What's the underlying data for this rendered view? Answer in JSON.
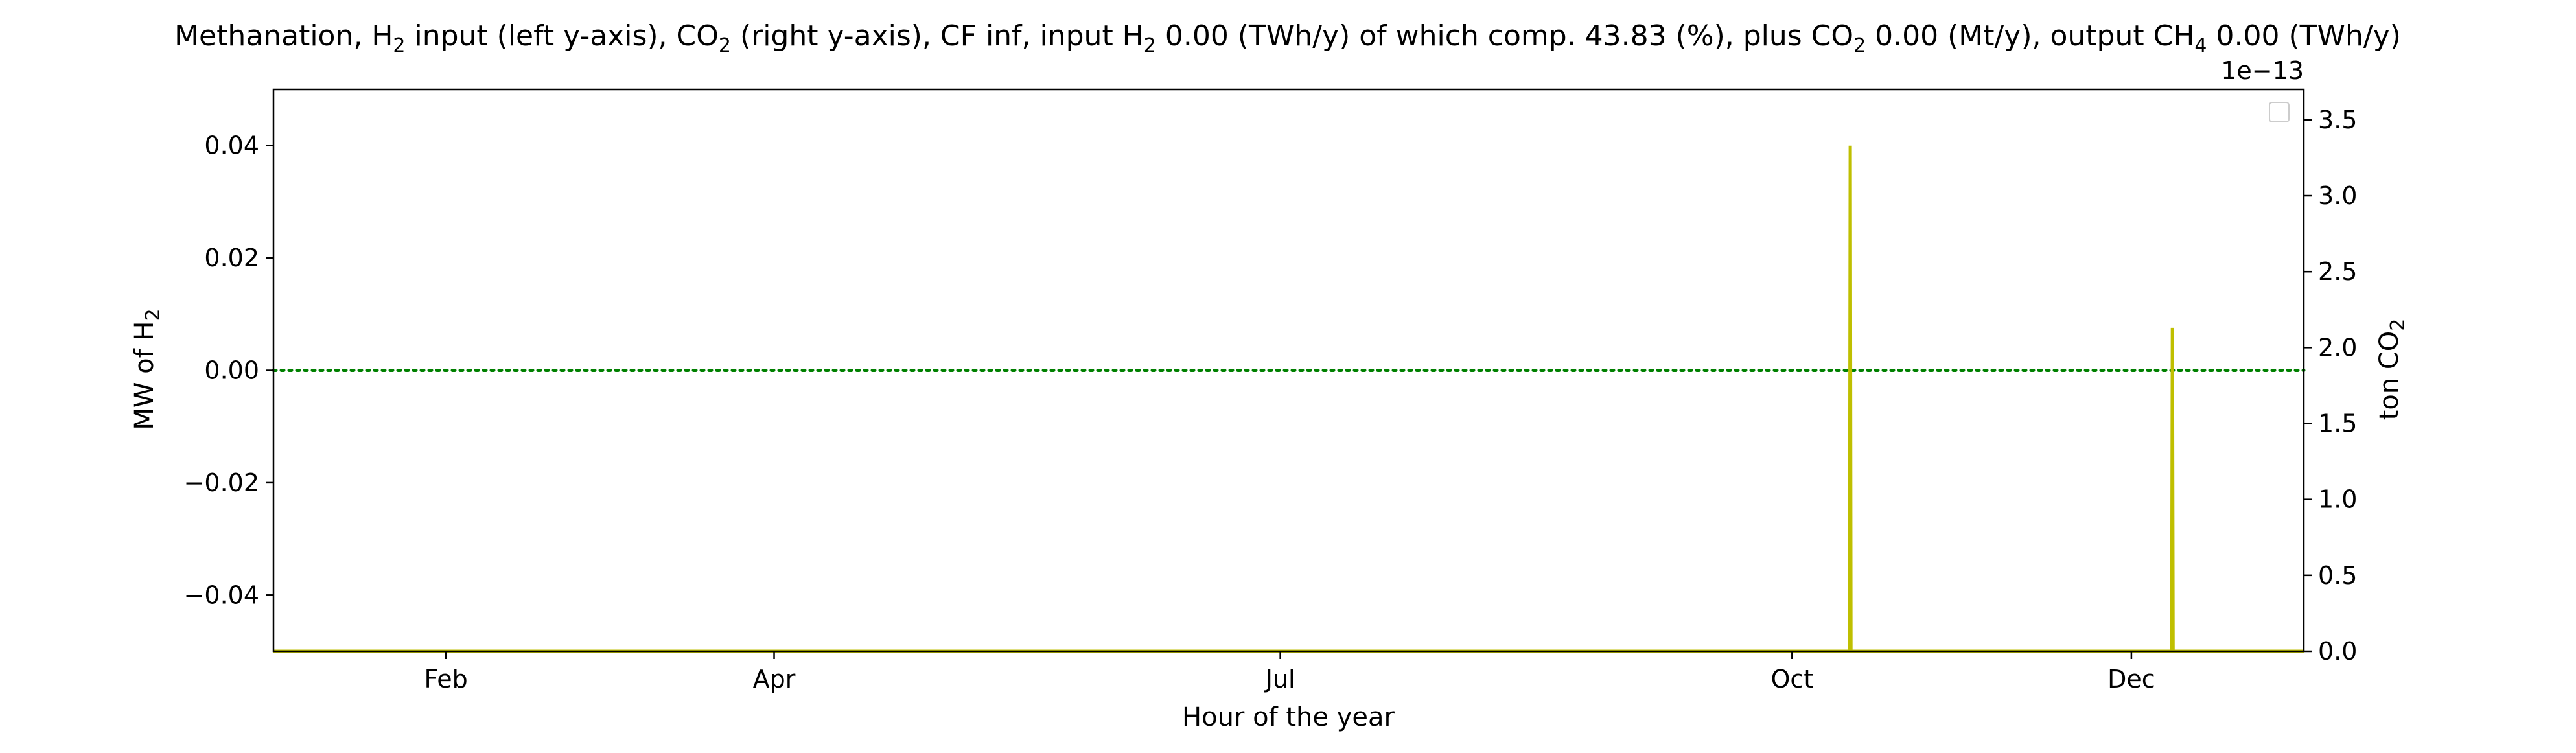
{
  "chart_data": {
    "type": "line",
    "title_parts": {
      "t1": "Methanation, H",
      "t1_sub": "2",
      "t2": " input (left y-axis), CO",
      "t2_sub": "2",
      "t3": " (right y-axis), CF inf, input H",
      "t3_sub": "2",
      "t4": " 0.00 (TWh/y) of which comp. 43.83 (%), plus CO",
      "t4_sub": "2",
      "t5": " 0.00 (Mt/y), output CH",
      "t5_sub": "4",
      "t6": " 0.00 (TWh/y)"
    },
    "xlabel": "Hour of the year",
    "ylabel_left": {
      "text": "MW of H",
      "sub": "2"
    },
    "ylabel_right": {
      "text": "ton CO",
      "sub": "2"
    },
    "right_axis_offset": "1e−13",
    "x_range": [
      0,
      8760
    ],
    "x_ticks": [
      {
        "label": "Feb",
        "value": 744
      },
      {
        "label": "Apr",
        "value": 2160
      },
      {
        "label": "Jul",
        "value": 4344
      },
      {
        "label": "Oct",
        "value": 6552
      },
      {
        "label": "Dec",
        "value": 8016
      }
    ],
    "ylim_left": [
      -0.05,
      0.05
    ],
    "y_ticks_left": [
      {
        "label": "0.04",
        "value": 0.04
      },
      {
        "label": "0.02",
        "value": 0.02
      },
      {
        "label": "0.00",
        "value": 0.0
      },
      {
        "label": "−0.02",
        "value": -0.02
      },
      {
        "label": "−0.04",
        "value": -0.04
      }
    ],
    "ylim_right": [
      0,
      3.7
    ],
    "y_ticks_right": [
      {
        "label": "3.5",
        "value": 3.5
      },
      {
        "label": "3.0",
        "value": 3.0
      },
      {
        "label": "2.5",
        "value": 2.5
      },
      {
        "label": "2.0",
        "value": 2.0
      },
      {
        "label": "1.5",
        "value": 1.5
      },
      {
        "label": "1.0",
        "value": 1.0
      },
      {
        "label": "0.5",
        "value": 0.5
      },
      {
        "label": "0.0",
        "value": 0.0
      }
    ],
    "series": [
      {
        "axis": "left",
        "color": "#008000",
        "style": "dotted",
        "points": [
          [
            0,
            0.0
          ],
          [
            8760,
            0.0
          ]
        ]
      },
      {
        "axis": "right",
        "color": "#bfbf00",
        "style": "solid",
        "points": [
          [
            0,
            0.0
          ],
          [
            6800,
            0.0
          ],
          [
            6803,
            3.33
          ],
          [
            6806,
            0.0
          ],
          [
            8190,
            0.0
          ],
          [
            8193,
            2.13
          ],
          [
            8196,
            0.0
          ],
          [
            8760,
            0.0
          ]
        ]
      }
    ],
    "grid": false,
    "legend": {
      "placement": "top-right",
      "entries": []
    }
  }
}
